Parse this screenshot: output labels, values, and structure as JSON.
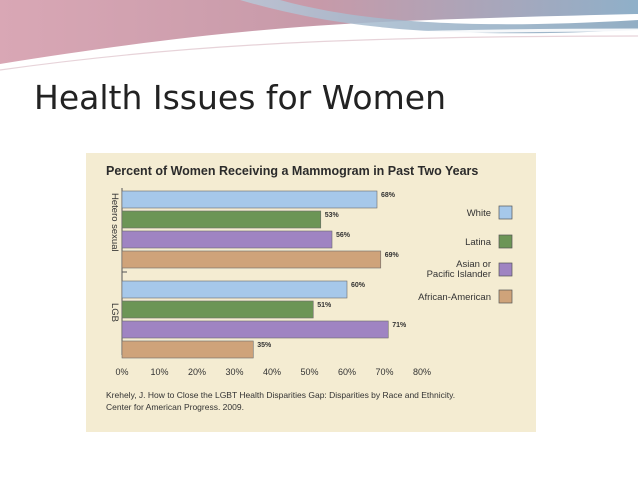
{
  "slide": {
    "title": "Health Issues for Women"
  },
  "colors": {
    "background": "#ffffff",
    "panel": "#f4ecd2",
    "white": "#a6c8ea",
    "latina": "#6c9556",
    "asian": "#9f84c2",
    "african_american": "#cfa37a"
  },
  "chart_data": {
    "type": "bar",
    "orientation": "horizontal",
    "title": "Percent of Women Receiving a Mammogram in Past Two Years",
    "groups": [
      "Hetero sexual",
      "LGB"
    ],
    "series": [
      {
        "name": "White",
        "color": "#a6c8ea",
        "values": [
          68,
          60
        ],
        "labels": [
          "68%",
          "60%"
        ]
      },
      {
        "name": "Latina",
        "color": "#6c9556",
        "values": [
          53,
          51
        ],
        "labels": [
          "53%",
          "51%"
        ]
      },
      {
        "name": "Asian or Pacific Islander",
        "legend_lines": [
          "Asian or",
          "Pacific Islander"
        ],
        "color": "#9f84c2",
        "values": [
          56,
          71
        ],
        "labels": [
          "56%",
          "71%"
        ]
      },
      {
        "name": "African-American",
        "color": "#cfa37a",
        "values": [
          69,
          35
        ],
        "labels": [
          "69%",
          "35%"
        ]
      }
    ],
    "xlim": [
      0,
      80
    ],
    "xticks": [
      "0%",
      "10%",
      "20%",
      "30%",
      "40%",
      "50%",
      "60%",
      "70%",
      "80%"
    ],
    "xlabel": "",
    "ylabel": "",
    "grid": false,
    "legend_position": "right",
    "source_lines": [
      "Krehely, J. How to Close the LGBT Health Disparities Gap: Disparities by Race and Ethnicity.",
      "Center for American Progress. 2009."
    ]
  }
}
